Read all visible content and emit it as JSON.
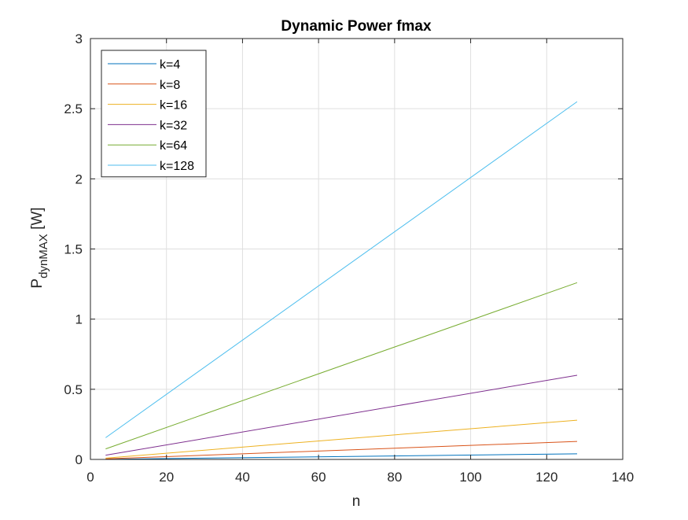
{
  "chart_data": {
    "type": "line",
    "title": "Dynamic Power fmax",
    "xlabel": "n",
    "ylabel": "P",
    "ylabel_subscript": "dynMAX",
    "ylabel_unit": " [W]",
    "xlim": [
      0,
      140
    ],
    "ylim": [
      0,
      3
    ],
    "x_ticks": [
      0,
      20,
      40,
      60,
      80,
      100,
      120,
      140
    ],
    "y_ticks": [
      0,
      0.5,
      1,
      1.5,
      2,
      2.5,
      3
    ],
    "grid": true,
    "legend_position": "top-left",
    "x": [
      4,
      128
    ],
    "series": [
      {
        "name": "k=4",
        "color": "#0072BD",
        "values": [
          0.001,
          0.04
        ]
      },
      {
        "name": "k=8",
        "color": "#D95319",
        "values": [
          0.004,
          0.128
        ]
      },
      {
        "name": "k=16",
        "color": "#EDB120",
        "values": [
          0.009,
          0.28
        ]
      },
      {
        "name": "k=32",
        "color": "#7E2F8E",
        "values": [
          0.03,
          0.6
        ]
      },
      {
        "name": "k=64",
        "color": "#77AC30",
        "values": [
          0.075,
          1.26
        ]
      },
      {
        "name": "k=128",
        "color": "#4DBEEE",
        "values": [
          0.155,
          2.55
        ]
      }
    ]
  }
}
